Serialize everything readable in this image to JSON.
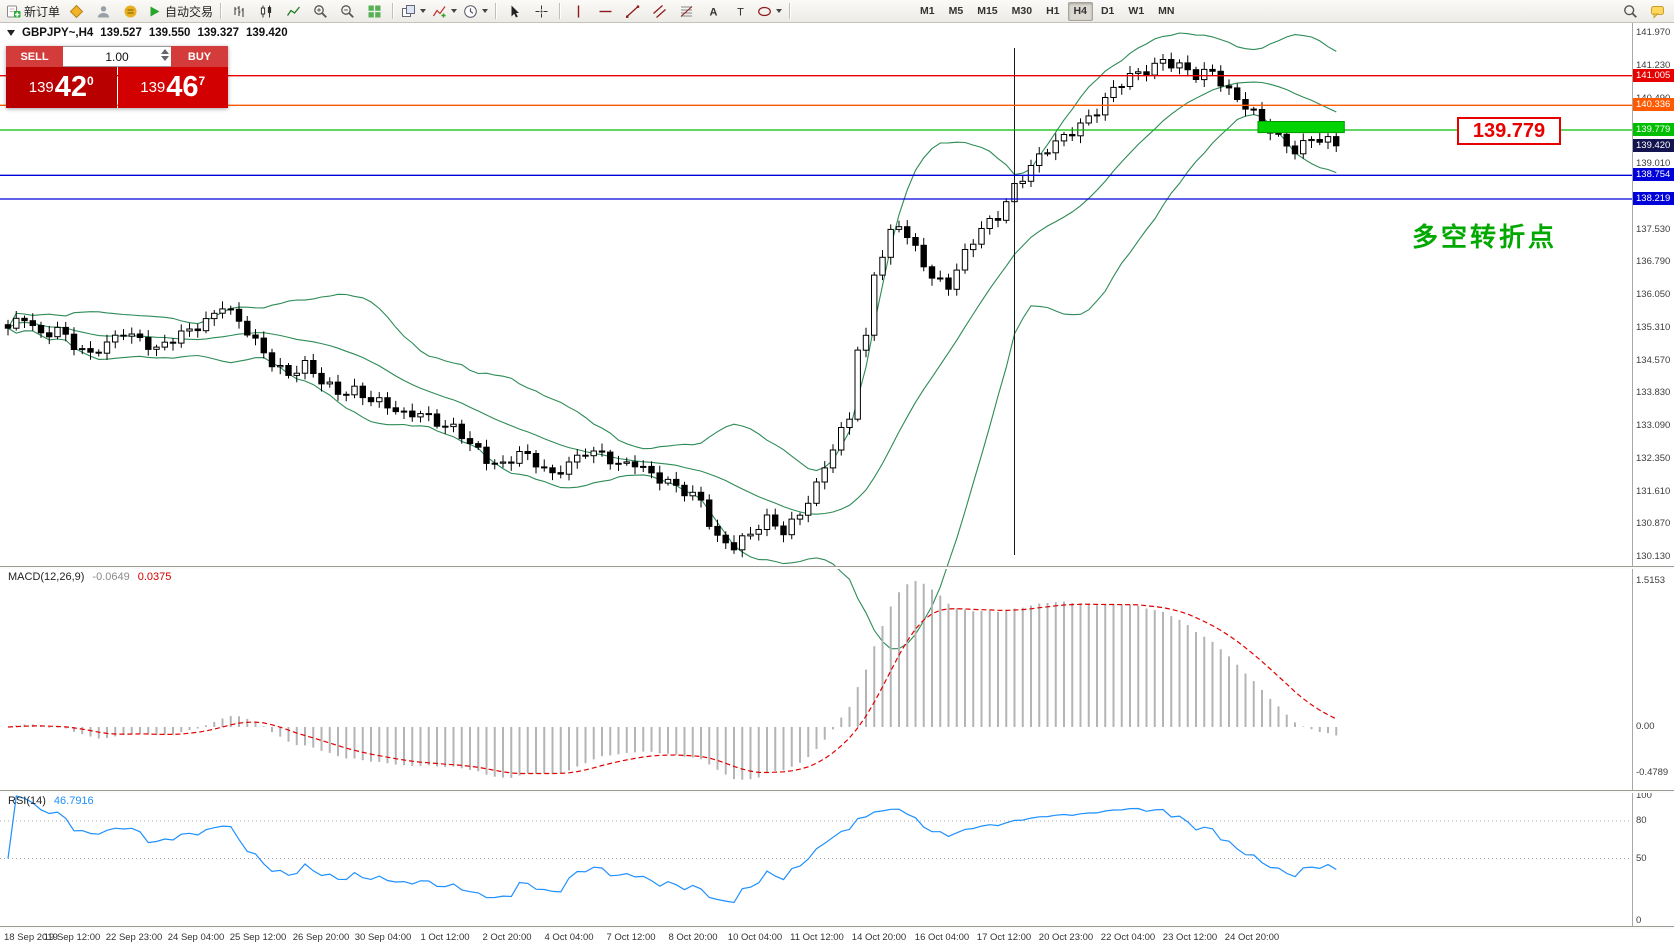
{
  "toolbar": {
    "items": [
      {
        "icon": "new-order",
        "name": "new-order",
        "label": "新订单"
      },
      {
        "icon": "wizard",
        "name": "mql5-wizard"
      },
      {
        "icon": "profile",
        "name": "profile"
      },
      {
        "icon": "community",
        "name": "community"
      },
      {
        "icon": "algo",
        "name": "algo-trading",
        "label": "自动交易"
      },
      {
        "sep": true
      },
      {
        "icon": "bars",
        "name": "bar-chart-mode"
      },
      {
        "icon": "candles",
        "name": "candle-chart-mode"
      },
      {
        "icon": "linechart",
        "name": "line-chart-mode"
      },
      {
        "icon": "zoomin",
        "name": "zoom-in"
      },
      {
        "icon": "zoomout",
        "name": "zoom-out"
      },
      {
        "icon": "tile",
        "name": "tile-windows"
      },
      {
        "sep": true
      },
      {
        "icon": "cascade",
        "name": "arrange-windows",
        "dd": true
      },
      {
        "icon": "indicators",
        "name": "insert-indicator",
        "dd": true
      },
      {
        "icon": "clock",
        "name": "chart-periods",
        "dd": true
      },
      {
        "sep": true
      },
      {
        "icon": "cursor",
        "name": "cursor-tool"
      },
      {
        "icon": "crosshair",
        "name": "crosshair-tool"
      },
      {
        "sep": true
      },
      {
        "icon": "vline",
        "name": "vertical-line-tool"
      },
      {
        "icon": "hline",
        "name": "horizontal-line-tool"
      },
      {
        "icon": "trend",
        "name": "trendline-tool"
      },
      {
        "icon": "channel",
        "name": "channel-tool"
      },
      {
        "icon": "fibo",
        "name": "fibonacci-tool"
      },
      {
        "icon": "textA",
        "name": "text-tool"
      },
      {
        "icon": "labelT",
        "name": "label-tool"
      },
      {
        "icon": "shapes",
        "name": "shapes-tool",
        "dd": true
      },
      {
        "sep": true
      }
    ],
    "timeframes": [
      {
        "label": "M1"
      },
      {
        "label": "M5"
      },
      {
        "label": "M15"
      },
      {
        "label": "M30"
      },
      {
        "label": "H1"
      },
      {
        "label": "H4",
        "active": true
      },
      {
        "label": "D1"
      },
      {
        "label": "W1"
      },
      {
        "label": "MN"
      }
    ],
    "right_items": [
      {
        "icon": "search",
        "name": "search"
      },
      {
        "icon": "chat",
        "name": "chat"
      }
    ]
  },
  "symbol_header": {
    "text": "GBPJPY~,H4",
    "o": "139.527",
    "h": "139.550",
    "l": "139.327",
    "c": "139.420"
  },
  "trade_panel": {
    "sell_label": "SELL",
    "buy_label": "BUY",
    "volume": "1.00",
    "bid_main": "139",
    "bid_pips": "42",
    "bid_frac": "0",
    "ask_main": "139",
    "ask_pips": "46",
    "ask_frac": "7"
  },
  "annotations": {
    "price_callout": "139.779",
    "turning_point": "多空转折点"
  },
  "price_axis": {
    "labels": [
      "141.970",
      "141.230",
      "140.490",
      "139.750",
      "139.010",
      "138.270",
      "137.530",
      "136.790",
      "136.050",
      "135.310",
      "134.570",
      "133.830",
      "133.090",
      "132.350",
      "131.610",
      "130.870",
      "130.130"
    ],
    "tags": [
      {
        "value": "141.005",
        "price": 141.005,
        "color": "#e60000"
      },
      {
        "value": "140.336",
        "price": 140.336,
        "color": "#ff5a00"
      },
      {
        "value": "139.779",
        "price": 139.779,
        "color": "#00bf00"
      },
      {
        "value": "139.420",
        "price": 139.42,
        "color": "#13134f"
      },
      {
        "value": "138.754",
        "price": 138.754,
        "color": "#0000d9"
      },
      {
        "value": "138.219",
        "price": 138.219,
        "color": "#0000d9"
      }
    ]
  },
  "hlines": [
    {
      "price": 141.005,
      "color": "#e60000"
    },
    {
      "price": 140.336,
      "color": "#ff5a00"
    },
    {
      "price": 139.779,
      "color": "#00bf00"
    },
    {
      "price": 138.754,
      "color": "#0000d9"
    },
    {
      "price": 138.219,
      "color": "#0000d9"
    }
  ],
  "macd": {
    "title": "MACD(12,26,9)",
    "value_main": "-0.0649",
    "value_signal": "0.0375",
    "axis_labels": [
      {
        "text": "1.5153",
        "value": 1.5153
      },
      {
        "text": "0.00",
        "value": 0
      },
      {
        "text": "-0.4789",
        "value": -0.4789
      }
    ],
    "fast": 12,
    "slow": 26,
    "signal": 9
  },
  "rsi": {
    "title": "RSI(14)",
    "value": "46.7916",
    "period": 14,
    "levels": [
      80,
      50
    ],
    "axis_labels": [
      {
        "text": "100",
        "value": 100
      },
      {
        "text": "80",
        "value": 80
      },
      {
        "text": "50",
        "value": 50
      },
      {
        "text": "0",
        "value": 0
      }
    ]
  },
  "time_axis": {
    "labels": [
      "18 Sep 2019",
      "19 Sep 12:00",
      "22 Sep 23:00",
      "24 Sep 04:00",
      "25 Sep 12:00",
      "26 Sep 20:00",
      "30 Sep 04:00",
      "1 Oct 12:00",
      "2 Oct 20:00",
      "4 Oct 04:00",
      "7 Oct 12:00",
      "8 Oct 20:00",
      "10 Oct 04:00",
      "11 Oct 12:00",
      "14 Oct 20:00",
      "16 Oct 04:00",
      "17 Oct 12:00",
      "20 Oct 23:00",
      "22 Oct 04:00",
      "23 Oct 12:00",
      "24 Oct 20:00"
    ]
  },
  "chart_data": {
    "type": "candlestick",
    "symbol": "GBPJPY",
    "timeframe": "H4",
    "bars": 162,
    "price_at_top": 141.97,
    "price_step": 0.74,
    "visible_range": [
      130.13,
      141.97
    ],
    "current_bid": 139.42,
    "current_ask": 139.467,
    "anchor_idx": [
      0,
      2,
      4,
      6,
      8,
      10,
      12,
      14,
      16,
      18,
      20,
      22,
      24,
      26,
      28,
      30,
      32,
      34,
      36,
      38,
      40,
      42,
      44,
      46,
      48,
      50,
      52,
      54,
      56,
      58,
      60,
      62,
      64,
      66,
      68,
      70,
      72,
      74,
      76,
      78,
      80,
      82,
      84,
      85,
      86,
      88,
      90,
      92,
      94,
      96,
      98,
      100,
      102,
      103,
      104,
      105,
      106,
      107,
      108,
      110,
      112,
      114,
      116,
      118,
      120,
      122,
      124,
      126,
      128,
      130,
      132,
      134,
      136,
      138,
      140,
      142,
      144,
      146,
      148,
      150,
      152,
      154,
      156,
      158,
      160,
      161
    ],
    "anchor_close": [
      135.3,
      135.5,
      135.1,
      135.35,
      134.95,
      134.65,
      134.9,
      135.25,
      135.1,
      134.8,
      135.0,
      135.25,
      135.5,
      135.85,
      135.4,
      134.95,
      134.55,
      134.3,
      134.45,
      134.05,
      133.85,
      133.95,
      133.7,
      133.5,
      133.3,
      133.45,
      133.2,
      133.0,
      132.65,
      132.35,
      132.25,
      132.5,
      132.2,
      131.95,
      132.3,
      132.55,
      132.4,
      132.15,
      132.3,
      132.05,
      131.8,
      131.55,
      131.4,
      130.95,
      130.6,
      130.4,
      130.6,
      130.95,
      130.75,
      131.15,
      131.7,
      132.55,
      133.3,
      134.9,
      135.1,
      136.6,
      136.95,
      137.4,
      137.6,
      137.05,
      136.5,
      136.3,
      136.95,
      137.5,
      137.85,
      138.55,
      138.95,
      139.3,
      139.6,
      139.95,
      140.25,
      140.65,
      140.95,
      141.15,
      141.4,
      141.2,
      140.95,
      141.1,
      140.7,
      140.35,
      139.9,
      139.55,
      139.35,
      139.65,
      139.5,
      139.42
    ],
    "bollinger": {
      "period": 20,
      "deviation": 2,
      "color": "#2E8B57"
    },
    "green_zone": {
      "from_bar": 152,
      "to_bar": 161,
      "price_low": 139.72,
      "price_high": 139.97,
      "color": "#00d400"
    },
    "vline_bar": 122
  }
}
